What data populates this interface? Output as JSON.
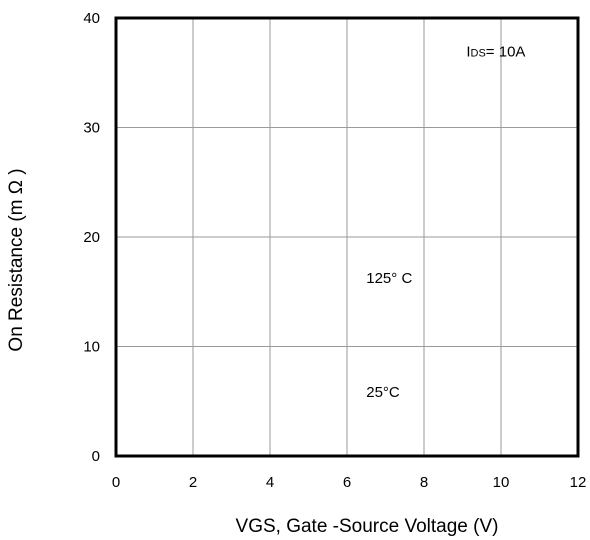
{
  "chart_data": {
    "type": "line",
    "title": "",
    "xlabel": "VGS, Gate -Source Voltage (V)",
    "ylabel": "On Resistance (m Ω )",
    "xlim": [
      0,
      12
    ],
    "ylim": [
      0,
      40
    ],
    "x_ticks": [
      "0",
      "2",
      "4",
      "6",
      "8",
      "10",
      "12"
    ],
    "y_ticks": [
      "0",
      "10",
      "20",
      "30",
      "40"
    ],
    "grid": true,
    "series": [],
    "annotations": [
      {
        "id": "ids",
        "prefix": "I",
        "sub": "DS",
        "text": "= 10A",
        "x": 9.1,
        "y": 36.5
      },
      {
        "id": "t125",
        "text": "125° C",
        "x": 6.5,
        "y": 15.8
      },
      {
        "id": "t25",
        "text": "25°C",
        "x": 6.5,
        "y": 5.4
      }
    ]
  }
}
